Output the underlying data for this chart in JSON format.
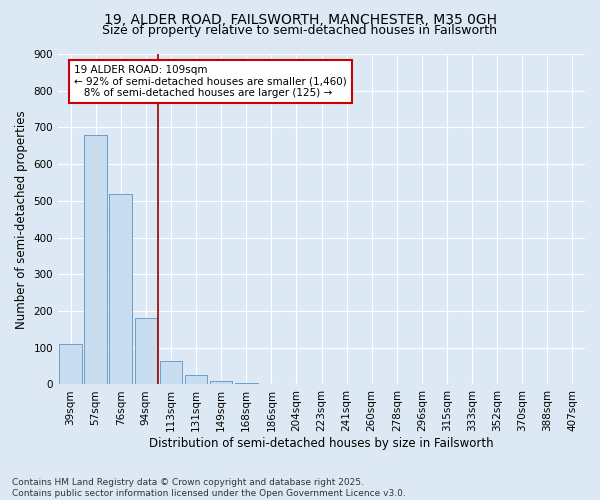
{
  "title_line1": "19, ALDER ROAD, FAILSWORTH, MANCHESTER, M35 0GH",
  "title_line2": "Size of property relative to semi-detached houses in Failsworth",
  "xlabel": "Distribution of semi-detached houses by size in Failsworth",
  "ylabel": "Number of semi-detached properties",
  "categories": [
    "39sqm",
    "57sqm",
    "76sqm",
    "94sqm",
    "113sqm",
    "131sqm",
    "149sqm",
    "168sqm",
    "186sqm",
    "204sqm",
    "223sqm",
    "241sqm",
    "260sqm",
    "278sqm",
    "296sqm",
    "315sqm",
    "333sqm",
    "352sqm",
    "370sqm",
    "388sqm",
    "407sqm"
  ],
  "values": [
    110,
    680,
    520,
    180,
    63,
    27,
    10,
    5,
    0,
    0,
    0,
    0,
    0,
    0,
    0,
    0,
    0,
    0,
    0,
    0,
    0
  ],
  "bar_color": "#c9ddf0",
  "bar_edge_color": "#6a9fc8",
  "background_color": "#dce9f5",
  "grid_color": "#ffffff",
  "property_line_color": "#990000",
  "annotation_text": "19 ALDER ROAD: 109sqm\n← 92% of semi-detached houses are smaller (1,460)\n   8% of semi-detached houses are larger (125) →",
  "annotation_box_color": "#ffffff",
  "annotation_box_edge": "#cc0000",
  "ylim": [
    0,
    900
  ],
  "yticks": [
    0,
    100,
    200,
    300,
    400,
    500,
    600,
    700,
    800,
    900
  ],
  "footnote": "Contains HM Land Registry data © Crown copyright and database right 2025.\nContains public sector information licensed under the Open Government Licence v3.0.",
  "title_fontsize": 10,
  "subtitle_fontsize": 9,
  "axis_label_fontsize": 8.5,
  "tick_fontsize": 7.5,
  "annotation_fontsize": 7.5,
  "footnote_fontsize": 6.5
}
